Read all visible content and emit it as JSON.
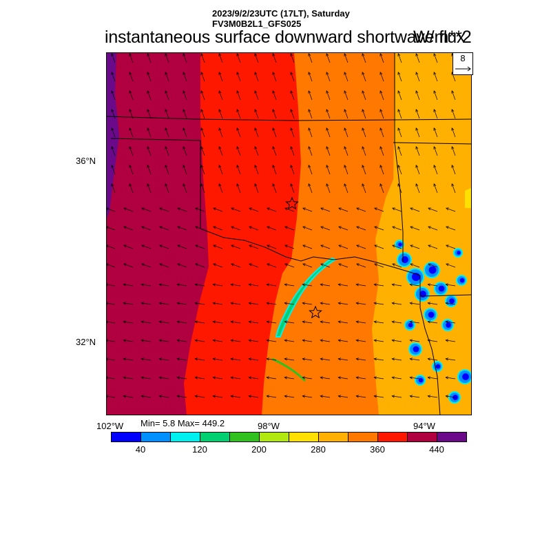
{
  "header": {
    "line1": "2023/9/2/23UTC (17LT), Saturday",
    "line2": "FV3M0B2L1_GFS025",
    "title": "instantaneous surface downward shortwave flux",
    "units": "W/m**2"
  },
  "reference_vector": {
    "value": "8"
  },
  "axes": {
    "lat_labels": [
      "36°N",
      "32°N"
    ],
    "lon_labels": [
      "102°W",
      "98°W",
      "94°W"
    ]
  },
  "stats": {
    "text": "Min= 5.8 Max= 449.2",
    "min": 5.8,
    "max": 449.2
  },
  "colorbar": {
    "colors": [
      "#0000ff",
      "#0090ff",
      "#00f0f0",
      "#00d070",
      "#30c020",
      "#b0e810",
      "#ffe000",
      "#ffb000",
      "#ff7800",
      "#ff1800",
      "#b00040",
      "#6a0a8a"
    ],
    "tick_labels": [
      "40",
      "120",
      "200",
      "280",
      "360",
      "440"
    ]
  },
  "map_features": {
    "markers": [
      "star",
      "star"
    ],
    "field_colors": {
      "west_edge": "#6a0a8a",
      "band_440": "#b00040",
      "band_400": "#ff1800",
      "band_360": "#ff7800",
      "band_320": "#ffb000",
      "cloud_low": "#0000ff",
      "cloud_mid": "#0090ff",
      "cloud_outline": "#00f0f0",
      "cloud_green": "#30c020"
    }
  }
}
